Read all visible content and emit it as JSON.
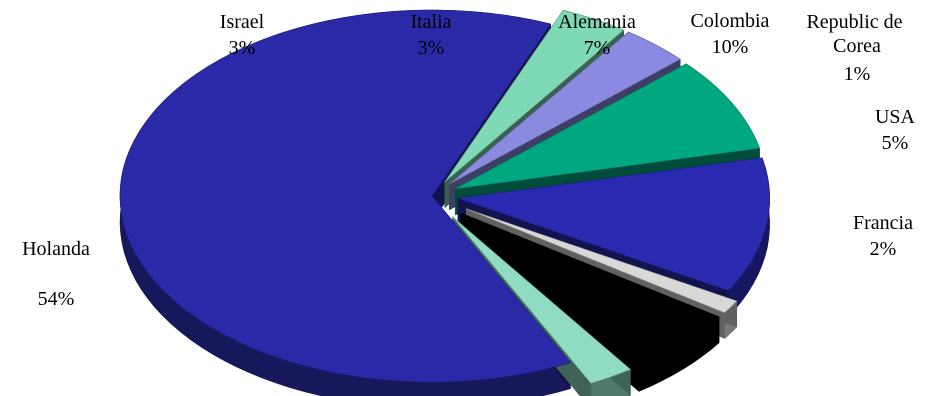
{
  "chart_data": {
    "type": "pie",
    "title": "",
    "slices": [
      {
        "name": "Holanda",
        "label": "54%",
        "value": 54,
        "color": "#2a2aa8"
      },
      {
        "name": "Israel",
        "label": "3%",
        "value": 3,
        "color": "#7fd8b6"
      },
      {
        "name": "Italia",
        "label": "3%",
        "value": 3,
        "color": "#8a8ae0"
      },
      {
        "name": "Alemania",
        "label": "7%",
        "value": 7,
        "color": "#00a882"
      },
      {
        "name": "Colombia",
        "label": "10%",
        "value": 10,
        "color": "#2a2ab0"
      },
      {
        "name": "Republic de Corea",
        "label": "1%",
        "value": 1,
        "color": "#d8d8d8"
      },
      {
        "name": "USA",
        "label": "5%",
        "value": 5,
        "color": "#000000"
      },
      {
        "name": "Francia",
        "label": "2%",
        "value": 2,
        "color": "#8fdcc2"
      }
    ]
  }
}
